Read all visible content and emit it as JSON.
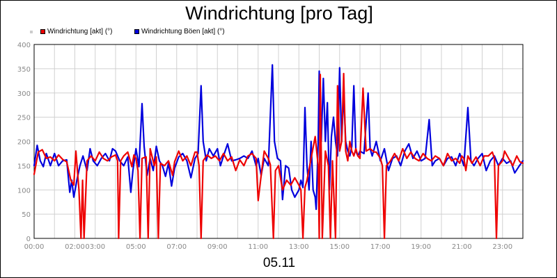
{
  "chart_data": {
    "type": "line",
    "title": "Windrichtung [pro Tag]",
    "xlabel": "05.11",
    "ylabel": "",
    "ylim": [
      0,
      400
    ],
    "xlim": [
      0,
      24
    ],
    "y_ticks": [
      0,
      50,
      100,
      150,
      200,
      250,
      300,
      350,
      400
    ],
    "x_ticks": [
      {
        "h": 0,
        "label": "00:00"
      },
      {
        "h": 2,
        "label": "02:00"
      },
      {
        "h": 3,
        "label": "03:00"
      },
      {
        "h": 5,
        "label": "05:00"
      },
      {
        "h": 7,
        "label": "07:00"
      },
      {
        "h": 9,
        "label": "09:00"
      },
      {
        "h": 11,
        "label": "11:00"
      },
      {
        "h": 13,
        "label": "13:00"
      },
      {
        "h": 15,
        "label": "15:00"
      },
      {
        "h": 17,
        "label": "17:00"
      },
      {
        "h": 19,
        "label": "19:00"
      },
      {
        "h": 21,
        "label": "21:00"
      },
      {
        "h": 23,
        "label": "23:00"
      }
    ],
    "grid": true,
    "legend_position": "top-left",
    "series": [
      {
        "name": "Windrichtung [akt] (°)",
        "color": "#ee0000",
        "points": [
          [
            0,
            132
          ],
          [
            0.2,
            178
          ],
          [
            0.4,
            183
          ],
          [
            0.6,
            165
          ],
          [
            0.8,
            168
          ],
          [
            1.0,
            160
          ],
          [
            1.2,
            172
          ],
          [
            1.4,
            163
          ],
          [
            1.6,
            158
          ],
          [
            1.8,
            120
          ],
          [
            1.95,
            110
          ],
          [
            2.05,
            180
          ],
          [
            2.2,
            100
          ],
          [
            2.3,
            0
          ],
          [
            2.38,
            120
          ],
          [
            2.45,
            0
          ],
          [
            2.6,
            160
          ],
          [
            2.8,
            170
          ],
          [
            3.0,
            160
          ],
          [
            3.2,
            178
          ],
          [
            3.4,
            165
          ],
          [
            3.6,
            160
          ],
          [
            3.8,
            168
          ],
          [
            4.0,
            172
          ],
          [
            4.1,
            160
          ],
          [
            4.15,
            0
          ],
          [
            4.25,
            160
          ],
          [
            4.4,
            170
          ],
          [
            4.6,
            178
          ],
          [
            4.8,
            148
          ],
          [
            4.9,
            172
          ],
          [
            5.0,
            165
          ],
          [
            5.1,
            140
          ],
          [
            5.2,
            0
          ],
          [
            5.3,
            165
          ],
          [
            5.5,
            168
          ],
          [
            5.6,
            0
          ],
          [
            5.7,
            185
          ],
          [
            5.9,
            150
          ],
          [
            6.0,
            168
          ],
          [
            6.1,
            0
          ],
          [
            6.2,
            155
          ],
          [
            6.4,
            150
          ],
          [
            6.6,
            160
          ],
          [
            6.8,
            130
          ],
          [
            6.9,
            158
          ],
          [
            7.1,
            180
          ],
          [
            7.3,
            160
          ],
          [
            7.5,
            170
          ],
          [
            7.7,
            150
          ],
          [
            7.9,
            178
          ],
          [
            8.0,
            178
          ],
          [
            8.1,
            150
          ],
          [
            8.2,
            0
          ],
          [
            8.3,
            160
          ],
          [
            8.5,
            172
          ],
          [
            8.7,
            165
          ],
          [
            8.9,
            170
          ],
          [
            9.1,
            160
          ],
          [
            9.3,
            175
          ],
          [
            9.5,
            160
          ],
          [
            9.7,
            168
          ],
          [
            9.9,
            140
          ],
          [
            10.1,
            162
          ],
          [
            10.3,
            150
          ],
          [
            10.5,
            170
          ],
          [
            10.7,
            175
          ],
          [
            10.9,
            165
          ],
          [
            11.0,
            78
          ],
          [
            11.15,
            130
          ],
          [
            11.3,
            180
          ],
          [
            11.5,
            165
          ],
          [
            11.6,
            152
          ],
          [
            11.75,
            0
          ],
          [
            11.85,
            140
          ],
          [
            12.0,
            150
          ],
          [
            12.2,
            100
          ],
          [
            12.4,
            120
          ],
          [
            12.6,
            110
          ],
          [
            12.8,
            125
          ],
          [
            13.0,
            110
          ],
          [
            13.1,
            100
          ],
          [
            13.2,
            0
          ],
          [
            13.3,
            105
          ],
          [
            13.4,
            120
          ],
          [
            13.6,
            165
          ],
          [
            13.8,
            210
          ],
          [
            13.95,
            150
          ],
          [
            14.0,
            0
          ],
          [
            14.05,
            338
          ],
          [
            14.15,
            0
          ],
          [
            14.3,
            180
          ],
          [
            14.45,
            150
          ],
          [
            14.55,
            0
          ],
          [
            14.65,
            160
          ],
          [
            14.8,
            0
          ],
          [
            14.9,
            315
          ],
          [
            15.0,
            180
          ],
          [
            15.1,
            200
          ],
          [
            15.2,
            340
          ],
          [
            15.3,
            180
          ],
          [
            15.4,
            160
          ],
          [
            15.5,
            200
          ],
          [
            15.6,
            180
          ],
          [
            15.7,
            170
          ],
          [
            15.8,
            185
          ],
          [
            15.9,
            170
          ],
          [
            16.0,
            165
          ],
          [
            16.15,
            310
          ],
          [
            16.3,
            180
          ],
          [
            16.5,
            185
          ],
          [
            16.7,
            178
          ],
          [
            16.8,
            178
          ],
          [
            17.0,
            165
          ],
          [
            17.1,
            150
          ],
          [
            17.2,
            0
          ],
          [
            17.3,
            150
          ],
          [
            17.5,
            160
          ],
          [
            17.7,
            175
          ],
          [
            17.9,
            160
          ],
          [
            18.1,
            185
          ],
          [
            18.3,
            165
          ],
          [
            18.5,
            178
          ],
          [
            18.7,
            165
          ],
          [
            18.9,
            160
          ],
          [
            19.1,
            175
          ],
          [
            19.3,
            165
          ],
          [
            19.5,
            160
          ],
          [
            19.7,
            170
          ],
          [
            19.9,
            165
          ],
          [
            20.1,
            150
          ],
          [
            20.3,
            175
          ],
          [
            20.5,
            160
          ],
          [
            20.7,
            165
          ],
          [
            20.9,
            155
          ],
          [
            21.0,
            170
          ],
          [
            21.1,
            165
          ],
          [
            21.2,
            140
          ],
          [
            21.3,
            170
          ],
          [
            21.5,
            155
          ],
          [
            21.7,
            168
          ],
          [
            21.9,
            150
          ],
          [
            22.1,
            170
          ],
          [
            22.3,
            170
          ],
          [
            22.5,
            178
          ],
          [
            22.6,
            165
          ],
          [
            22.7,
            0
          ],
          [
            22.8,
            150
          ],
          [
            23.0,
            160
          ],
          [
            23.1,
            180
          ],
          [
            23.3,
            165
          ],
          [
            23.5,
            150
          ],
          [
            23.7,
            170
          ],
          [
            23.85,
            158
          ],
          [
            24.0,
            155
          ]
        ]
      },
      {
        "name": "Windrichtung Böen [akt] (°)",
        "color": "#0000dd",
        "points": [
          [
            0,
            150
          ],
          [
            0.15,
            192
          ],
          [
            0.3,
            160
          ],
          [
            0.45,
            148
          ],
          [
            0.6,
            175
          ],
          [
            0.8,
            150
          ],
          [
            1.0,
            175
          ],
          [
            1.2,
            150
          ],
          [
            1.4,
            160
          ],
          [
            1.6,
            162
          ],
          [
            1.75,
            95
          ],
          [
            1.85,
            120
          ],
          [
            1.95,
            85
          ],
          [
            2.1,
            120
          ],
          [
            2.25,
            150
          ],
          [
            2.4,
            170
          ],
          [
            2.6,
            140
          ],
          [
            2.75,
            185
          ],
          [
            2.9,
            160
          ],
          [
            3.1,
            150
          ],
          [
            3.3,
            165
          ],
          [
            3.5,
            175
          ],
          [
            3.7,
            160
          ],
          [
            3.85,
            185
          ],
          [
            4.0,
            180
          ],
          [
            4.2,
            160
          ],
          [
            4.4,
            150
          ],
          [
            4.6,
            168
          ],
          [
            4.75,
            95
          ],
          [
            4.85,
            140
          ],
          [
            5.0,
            185
          ],
          [
            5.15,
            148
          ],
          [
            5.3,
            278
          ],
          [
            5.4,
            190
          ],
          [
            5.55,
            130
          ],
          [
            5.7,
            165
          ],
          [
            5.85,
            140
          ],
          [
            6.0,
            190
          ],
          [
            6.15,
            160
          ],
          [
            6.3,
            150
          ],
          [
            6.45,
            128
          ],
          [
            6.6,
            155
          ],
          [
            6.75,
            108
          ],
          [
            6.9,
            145
          ],
          [
            7.1,
            168
          ],
          [
            7.3,
            175
          ],
          [
            7.5,
            160
          ],
          [
            7.7,
            125
          ],
          [
            7.9,
            165
          ],
          [
            8.05,
            175
          ],
          [
            8.2,
            315
          ],
          [
            8.3,
            200
          ],
          [
            8.45,
            160
          ],
          [
            8.6,
            185
          ],
          [
            8.8,
            170
          ],
          [
            9.0,
            185
          ],
          [
            9.15,
            150
          ],
          [
            9.3,
            170
          ],
          [
            9.5,
            195
          ],
          [
            9.7,
            160
          ],
          [
            9.9,
            162
          ],
          [
            10.1,
            165
          ],
          [
            10.3,
            170
          ],
          [
            10.5,
            165
          ],
          [
            10.7,
            180
          ],
          [
            10.9,
            150
          ],
          [
            11.0,
            165
          ],
          [
            11.15,
            130
          ],
          [
            11.3,
            165
          ],
          [
            11.5,
            150
          ],
          [
            11.7,
            358
          ],
          [
            11.8,
            200
          ],
          [
            11.95,
            165
          ],
          [
            12.1,
            160
          ],
          [
            12.2,
            80
          ],
          [
            12.35,
            150
          ],
          [
            12.5,
            145
          ],
          [
            12.65,
            100
          ],
          [
            12.8,
            85
          ],
          [
            13.0,
            100
          ],
          [
            13.1,
            120
          ],
          [
            13.2,
            105
          ],
          [
            13.3,
            270
          ],
          [
            13.4,
            150
          ],
          [
            13.5,
            100
          ],
          [
            13.6,
            200
          ],
          [
            13.7,
            100
          ],
          [
            13.8,
            85
          ],
          [
            13.85,
            60
          ],
          [
            13.95,
            200
          ],
          [
            14.0,
            345
          ],
          [
            14.1,
            200
          ],
          [
            14.2,
            330
          ],
          [
            14.3,
            200
          ],
          [
            14.4,
            280
          ],
          [
            14.5,
            100
          ],
          [
            14.6,
            210
          ],
          [
            14.7,
            250
          ],
          [
            14.8,
            200
          ],
          [
            14.9,
            170
          ],
          [
            15.0,
            352
          ],
          [
            15.1,
            200
          ],
          [
            15.2,
            300
          ],
          [
            15.3,
            200
          ],
          [
            15.4,
            180
          ],
          [
            15.5,
            170
          ],
          [
            15.6,
            190
          ],
          [
            15.7,
            315
          ],
          [
            15.8,
            180
          ],
          [
            15.9,
            170
          ],
          [
            16.0,
            180
          ],
          [
            16.2,
            175
          ],
          [
            16.4,
            300
          ],
          [
            16.5,
            185
          ],
          [
            16.6,
            170
          ],
          [
            16.8,
            200
          ],
          [
            17.0,
            160
          ],
          [
            17.2,
            185
          ],
          [
            17.4,
            140
          ],
          [
            17.6,
            165
          ],
          [
            17.8,
            170
          ],
          [
            18.0,
            150
          ],
          [
            18.2,
            180
          ],
          [
            18.4,
            195
          ],
          [
            18.6,
            165
          ],
          [
            18.8,
            180
          ],
          [
            19.0,
            160
          ],
          [
            19.2,
            165
          ],
          [
            19.4,
            245
          ],
          [
            19.55,
            150
          ],
          [
            19.7,
            160
          ],
          [
            19.9,
            165
          ],
          [
            20.1,
            150
          ],
          [
            20.3,
            165
          ],
          [
            20.5,
            168
          ],
          [
            20.7,
            150
          ],
          [
            20.9,
            175
          ],
          [
            21.1,
            150
          ],
          [
            21.3,
            270
          ],
          [
            21.45,
            160
          ],
          [
            21.6,
            150
          ],
          [
            21.8,
            165
          ],
          [
            22.0,
            175
          ],
          [
            22.2,
            140
          ],
          [
            22.4,
            160
          ],
          [
            22.6,
            170
          ],
          [
            22.8,
            150
          ],
          [
            23.0,
            165
          ],
          [
            23.2,
            155
          ],
          [
            23.4,
            160
          ],
          [
            23.6,
            135
          ],
          [
            23.8,
            148
          ],
          [
            24.0,
            160
          ]
        ]
      }
    ]
  }
}
